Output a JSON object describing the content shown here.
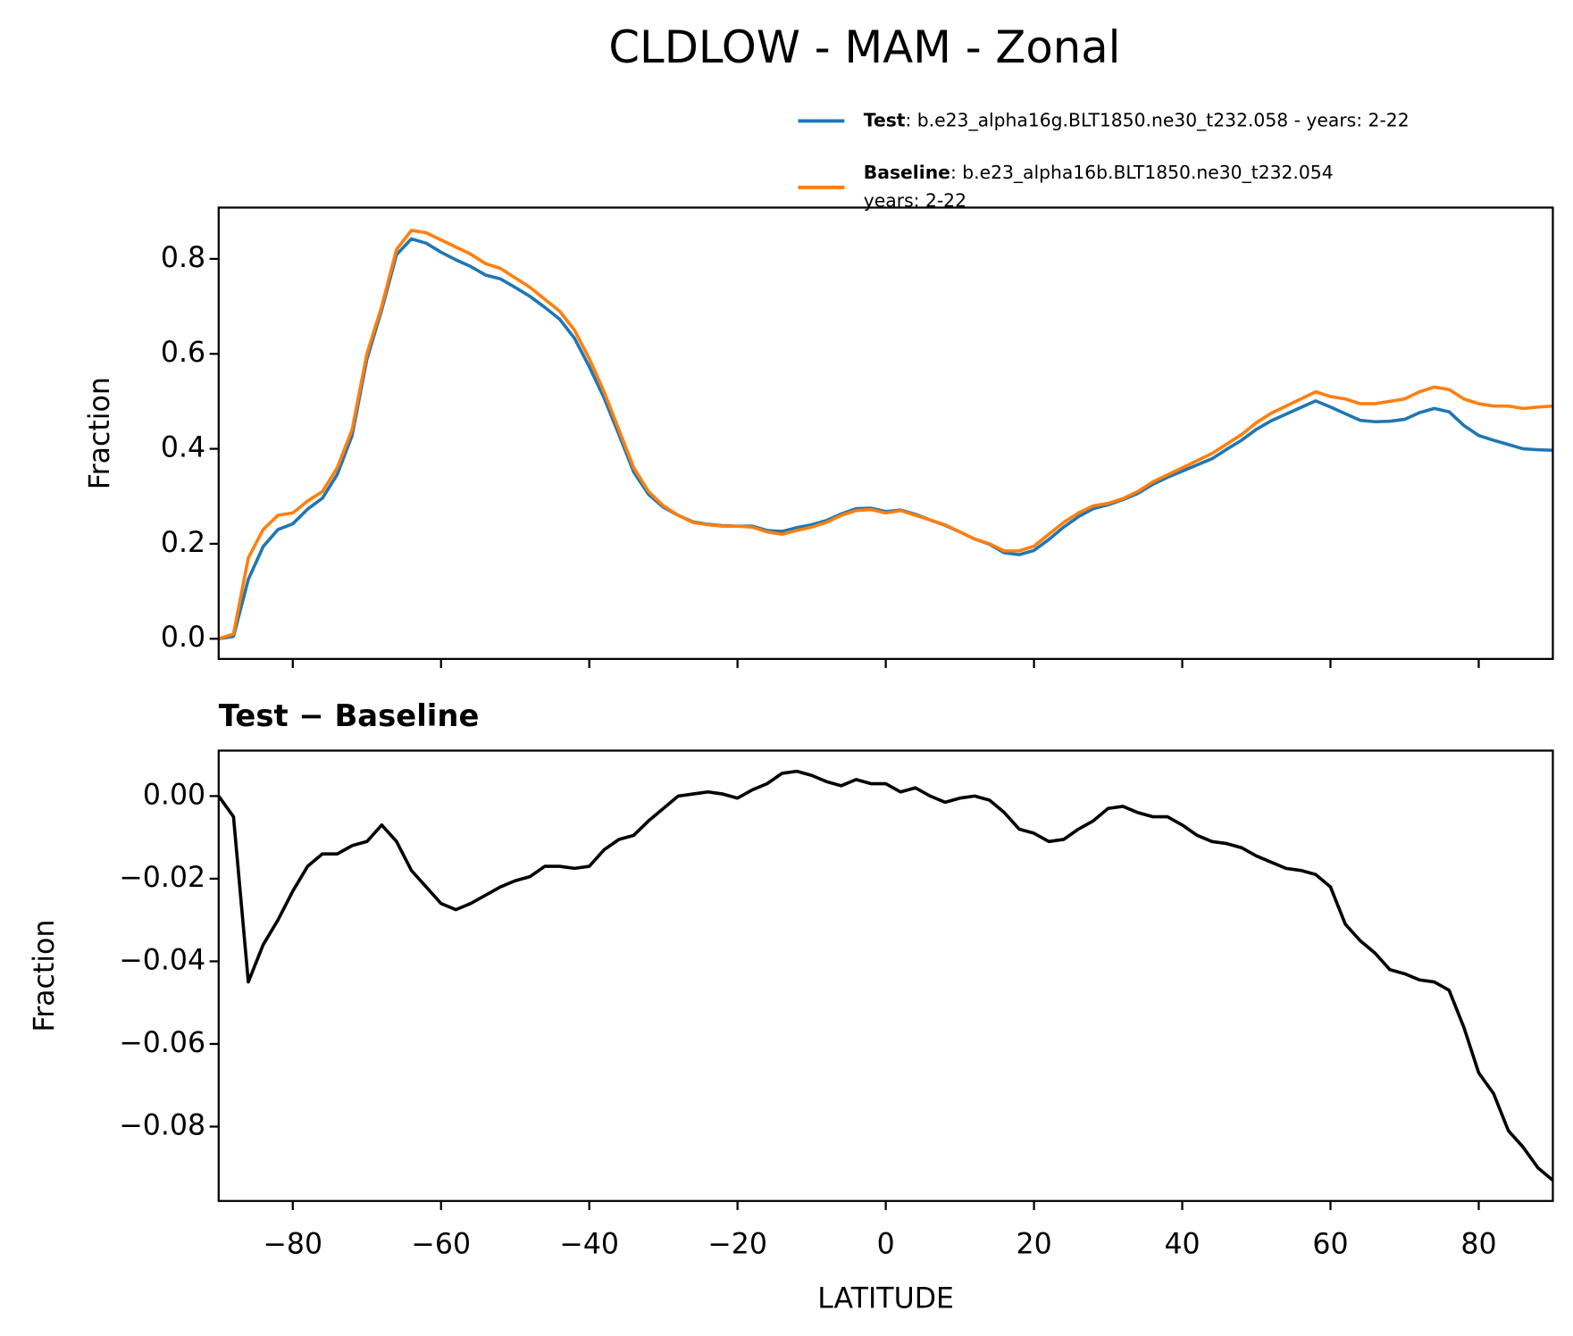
{
  "title": "CLDLOW - MAM - Zonal",
  "chart_data": [
    {
      "type": "line",
      "ylabel": "Fraction",
      "x": [
        -90,
        -88,
        -86,
        -84,
        -82,
        -80,
        -78,
        -76,
        -74,
        -72,
        -70,
        -68,
        -66,
        -64,
        -62,
        -60,
        -58,
        -56,
        -54,
        -52,
        -50,
        -48,
        -46,
        -44,
        -42,
        -40,
        -38,
        -36,
        -34,
        -32,
        -30,
        -28,
        -26,
        -24,
        -22,
        -20,
        -18,
        -16,
        -14,
        -12,
        -10,
        -8,
        -6,
        -4,
        -2,
        0,
        2,
        4,
        6,
        8,
        10,
        12,
        14,
        16,
        18,
        20,
        22,
        24,
        26,
        28,
        30,
        32,
        34,
        36,
        38,
        40,
        42,
        44,
        46,
        48,
        50,
        52,
        54,
        56,
        58,
        60,
        62,
        64,
        66,
        68,
        70,
        72,
        74,
        76,
        78,
        80,
        82,
        84,
        86,
        88,
        90
      ],
      "series": [
        {
          "name": "Test",
          "description": [
            ": b.e23_alpha16g.BLT1850.ne30_t232.058 - years: 2-22"
          ],
          "color": "#1f77b4",
          "values": [
            0,
            0.005,
            0.125,
            0.194,
            0.23,
            0.242,
            0.273,
            0.296,
            0.346,
            0.428,
            0.589,
            0.693,
            0.809,
            0.842,
            0.833,
            0.814,
            0.798,
            0.784,
            0.766,
            0.758,
            0.74,
            0.721,
            0.698,
            0.673,
            0.633,
            0.573,
            0.507,
            0.43,
            0.351,
            0.304,
            0.277,
            0.26,
            0.246,
            0.241,
            0.238,
            0.237,
            0.237,
            0.228,
            0.226,
            0.234,
            0.24,
            0.249,
            0.263,
            0.274,
            0.275,
            0.268,
            0.271,
            0.262,
            0.25,
            0.239,
            0.225,
            0.21,
            0.199,
            0.181,
            0.177,
            0.186,
            0.209,
            0.235,
            0.257,
            0.274,
            0.282,
            0.293,
            0.306,
            0.325,
            0.34,
            0.353,
            0.366,
            0.379,
            0.399,
            0.418,
            0.441,
            0.459,
            0.473,
            0.487,
            0.501,
            0.488,
            0.474,
            0.46,
            0.457,
            0.458,
            0.462,
            0.476,
            0.485,
            0.478,
            0.449,
            0.428,
            0.418,
            0.409,
            0.4,
            0.398,
            0.397
          ]
        },
        {
          "name": "Baseline",
          "description": [
            ": b.e23_alpha16b.BLT1850.ne30_t232.054",
            "years: 2-22"
          ],
          "color": "#ff7f0e",
          "values": [
            0,
            0.01,
            0.17,
            0.23,
            0.26,
            0.265,
            0.29,
            0.31,
            0.36,
            0.44,
            0.6,
            0.7,
            0.82,
            0.86,
            0.855,
            0.84,
            0.825,
            0.81,
            0.79,
            0.78,
            0.76,
            0.74,
            0.715,
            0.69,
            0.65,
            0.59,
            0.52,
            0.44,
            0.36,
            0.31,
            0.28,
            0.26,
            0.245,
            0.24,
            0.237,
            0.237,
            0.235,
            0.225,
            0.22,
            0.228,
            0.235,
            0.245,
            0.26,
            0.27,
            0.272,
            0.265,
            0.27,
            0.26,
            0.25,
            0.24,
            0.225,
            0.21,
            0.2,
            0.185,
            0.185,
            0.195,
            0.22,
            0.245,
            0.265,
            0.28,
            0.285,
            0.295,
            0.31,
            0.33,
            0.345,
            0.36,
            0.375,
            0.39,
            0.41,
            0.43,
            0.455,
            0.475,
            0.49,
            0.505,
            0.52,
            0.51,
            0.505,
            0.495,
            0.495,
            0.5,
            0.505,
            0.52,
            0.53,
            0.525,
            0.505,
            0.495,
            0.49,
            0.49,
            0.485,
            0.488,
            0.49
          ]
        }
      ],
      "xlim": [
        -90,
        90
      ],
      "xticks": [
        -80,
        -60,
        -40,
        -20,
        0,
        20,
        40,
        60,
        80
      ],
      "ylim": [
        -0.0425,
        0.908
      ],
      "yticks": [
        {
          "value": 0,
          "label": "0.0"
        },
        {
          "value": 0.2,
          "label": "0.2"
        },
        {
          "value": 0.4,
          "label": "0.4"
        },
        {
          "value": 0.6,
          "label": "0.6"
        },
        {
          "value": 0.8,
          "label": "0.8"
        }
      ]
    },
    {
      "type": "line",
      "title": "Test − Baseline",
      "ylabel": "Fraction",
      "xlabel": "LATITUDE",
      "color": "#000000",
      "x": [
        -90,
        -88,
        -86,
        -84,
        -82,
        -80,
        -78,
        -76,
        -74,
        -72,
        -70,
        -68,
        -66,
        -64,
        -62,
        -60,
        -58,
        -56,
        -54,
        -52,
        -50,
        -48,
        -46,
        -44,
        -42,
        -40,
        -38,
        -36,
        -34,
        -32,
        -30,
        -28,
        -26,
        -24,
        -22,
        -20,
        -18,
        -16,
        -14,
        -12,
        -10,
        -8,
        -6,
        -4,
        -2,
        0,
        2,
        4,
        6,
        8,
        10,
        12,
        14,
        16,
        18,
        20,
        22,
        24,
        26,
        28,
        30,
        32,
        34,
        36,
        38,
        40,
        42,
        44,
        46,
        48,
        50,
        52,
        54,
        56,
        58,
        60,
        62,
        64,
        66,
        68,
        70,
        72,
        74,
        76,
        78,
        80,
        82,
        84,
        86,
        88,
        90
      ],
      "values": [
        0,
        -0.005,
        -0.045,
        -0.036,
        -0.03,
        -0.023,
        -0.017,
        -0.014,
        -0.014,
        -0.012,
        -0.011,
        -0.007,
        -0.011,
        -0.018,
        -0.022,
        -0.026,
        -0.0275,
        -0.026,
        -0.024,
        -0.022,
        -0.0205,
        -0.0195,
        -0.017,
        -0.017,
        -0.0175,
        -0.017,
        -0.013,
        -0.0105,
        -0.0095,
        -0.006,
        -0.003,
        0,
        0.0005,
        0.001,
        0.0005,
        -0.0005,
        0.0015,
        0.003,
        0.0055,
        0.006,
        0.005,
        0.0035,
        0.0025,
        0.004,
        0.003,
        0.003,
        0.001,
        0.002,
        0,
        -0.0015,
        -0.0005,
        0,
        -0.001,
        -0.004,
        -0.008,
        -0.009,
        -0.011,
        -0.0105,
        -0.008,
        -0.006,
        -0.003,
        -0.0025,
        -0.004,
        -0.005,
        -0.005,
        -0.007,
        -0.0095,
        -0.011,
        -0.0115,
        -0.0125,
        -0.0145,
        -0.016,
        -0.0175,
        -0.018,
        -0.019,
        -0.022,
        -0.031,
        -0.035,
        -0.038,
        -0.042,
        -0.043,
        -0.0445,
        -0.045,
        -0.047,
        -0.056,
        -0.067,
        -0.072,
        -0.081,
        -0.085,
        -0.09,
        -0.093
      ],
      "xlim": [
        -90,
        90
      ],
      "xticks": [
        {
          "value": -80,
          "label": "−80"
        },
        {
          "value": -60,
          "label": "−60"
        },
        {
          "value": -40,
          "label": "−40"
        },
        {
          "value": -20,
          "label": "−20"
        },
        0,
        20,
        40,
        60,
        80
      ],
      "ylim": [
        -0.098,
        0.011
      ],
      "yticks": [
        {
          "value": 0,
          "label": "0.00"
        },
        {
          "value": -0.02,
          "label": "−0.02"
        },
        {
          "value": -0.04,
          "label": "−0.04"
        },
        {
          "value": -0.06,
          "label": "−0.06"
        },
        {
          "value": -0.08,
          "label": "−0.08"
        }
      ]
    }
  ]
}
